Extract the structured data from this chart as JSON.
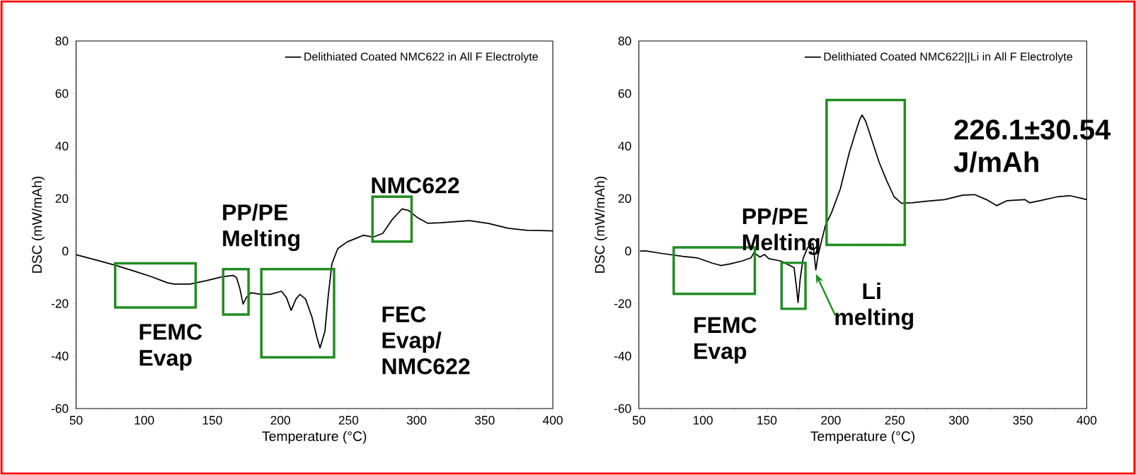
{
  "chart_data": [
    {
      "type": "line",
      "xlabel": "Temperature (°C)",
      "ylabel": "DSC (mW/mAh)",
      "xlim": [
        50,
        400
      ],
      "ylim": [
        -60,
        80
      ],
      "xticks": [
        50,
        100,
        150,
        200,
        250,
        300,
        350,
        400
      ],
      "yticks": [
        -60,
        -40,
        -20,
        0,
        20,
        40,
        60,
        80
      ],
      "legend": "top right",
      "series": [
        {
          "name": "Delithiated Coated NMC622 in All F Electrolyte",
          "color": "#000000",
          "x": [
            50,
            65.3,
            79.5,
            93.6,
            105.4,
            117.2,
            122,
            133.7,
            145.5,
            157.2,
            165.5,
            167.8,
            170.2,
            172.6,
            175,
            178.4,
            185.5,
            192.6,
            200.8,
            204.4,
            207.9,
            211.4,
            214.3,
            218.5,
            223.2,
            226.8,
            229.1,
            232.7,
            235,
            237.8,
            242.1,
            249.1,
            256.2,
            261,
            268,
            275.1,
            282.1,
            289.2,
            294,
            301,
            308.1,
            317.5,
            338.7,
            352.8,
            367,
            381.1,
            400
          ],
          "values": [
            -1.4,
            -3.5,
            -5.5,
            -7.8,
            -9.8,
            -12.1,
            -12.6,
            -12.6,
            -11.3,
            -9.8,
            -9.3,
            -10.1,
            -14.2,
            -20.2,
            -17.7,
            -15.9,
            -16.5,
            -16.5,
            -15.3,
            -17.7,
            -22.6,
            -18.3,
            -16.5,
            -18.3,
            -25.2,
            -32.8,
            -36.9,
            -30.5,
            -17.7,
            -4.9,
            0.9,
            3.5,
            5.0,
            6.0,
            5.3,
            6.7,
            12,
            16,
            15.5,
            12.6,
            10.6,
            10.8,
            11.6,
            10.5,
            8.7,
            7.9,
            7.7
          ]
        }
      ],
      "annotations": [
        "NMC622",
        "PP/PE Melting",
        "FEMC Evap",
        "FEC Evap/ NMC622"
      ]
    },
    {
      "type": "line",
      "xlabel": "Temperature (°C)",
      "ylabel": "DSC (mW/mAh)",
      "xlim": [
        50,
        400
      ],
      "ylim": [
        -60,
        80
      ],
      "xticks": [
        50,
        100,
        150,
        200,
        250,
        300,
        350,
        400
      ],
      "yticks": [
        -60,
        -40,
        -20,
        0,
        20,
        40,
        60,
        80
      ],
      "legend": "top right",
      "series": [
        {
          "name": "Delithiated Coated NMC622||Li in All F Electrolyte",
          "color": "#000000",
          "x": [
            50.9,
            56,
            67.7,
            84,
            95.6,
            107.3,
            114.3,
            121.3,
            130.6,
            137.6,
            139.9,
            144.6,
            148,
            151.5,
            160.9,
            166.7,
            171.3,
            173,
            174.4,
            176,
            178.3,
            181.8,
            186,
            188.3,
            190,
            192.3,
            195.8,
            200.4,
            207.4,
            214.4,
            219.1,
            222.6,
            224.4,
            227.2,
            231.9,
            237.7,
            243.5,
            249.4,
            255.2,
            263.3,
            275,
            289,
            303,
            312.3,
            321.6,
            329.7,
            337.9,
            351.8,
            355.3,
            363.5,
            377.4,
            386.7,
            400
          ],
          "values": [
            0,
            0,
            -0.9,
            -2,
            -2.6,
            -4.6,
            -5.5,
            -4.9,
            -3.8,
            -2.6,
            -0.6,
            -2.3,
            -1.3,
            -2.9,
            -3.8,
            -5.2,
            -6.3,
            -13.2,
            -19.6,
            -10.9,
            -2.9,
            1.2,
            2.9,
            -7.2,
            -1.7,
            2.9,
            9.8,
            14.4,
            23.6,
            37.4,
            44.9,
            50.1,
            51.8,
            49.5,
            42.6,
            33.9,
            27,
            20.7,
            18.2,
            18.4,
            19,
            19.6,
            21.3,
            21.5,
            19.6,
            17.3,
            19.2,
            19.6,
            18.4,
            19.2,
            20.7,
            21.1,
            19.6
          ]
        }
      ],
      "annotations": [
        "226.1±30.54 J/mAh",
        "PP/PE Melting",
        "FEMC Evap",
        {
          "text": "Li melting",
          "x": 188.3,
          "y": -7.2
        }
      ]
    }
  ]
}
